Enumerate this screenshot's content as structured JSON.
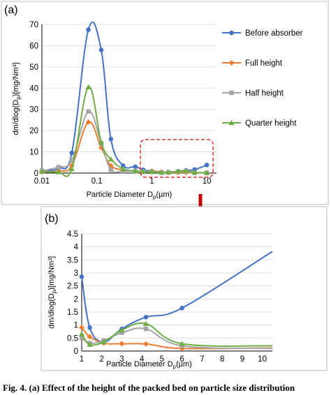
{
  "panel_a_label": "(a)",
  "panel_b_label": "(b)",
  "caption": "Fig. 4. (a) Effect of the height of the packed bed on particle size distribution",
  "colors": {
    "Before absorber": "#4472c4",
    "Full height": "#ed7d31",
    "Half height": "#a5a5a5",
    "Quarter height": "#70ad47",
    "highlight": "#e03030",
    "arrow": "#c00000",
    "grid": "#d9d9d9"
  },
  "chart_data": [
    {
      "id": "a",
      "type": "line",
      "x_scale": "log",
      "xlim": [
        0.01,
        15
      ],
      "ylim": [
        0,
        70
      ],
      "xticks": [
        0.01,
        0.1,
        1,
        10
      ],
      "xtick_labels": [
        "0.01",
        "0.1",
        "1",
        "10"
      ],
      "yticks": [
        0,
        10,
        20,
        30,
        40,
        50,
        60,
        70
      ],
      "ytick_labels": [
        "0",
        "10",
        "20",
        "30",
        "40",
        "50",
        "60",
        "70"
      ],
      "xlabel": "Particle Diameter D",
      "xlabel_sub": "p",
      "xlabel_tail": "(µm)",
      "ylabel": "dm/dlog(D",
      "ylabel_sub": "p",
      "ylabel_tail": ")[mg/Nm³]",
      "grid": "horizontal",
      "legend_position": "right",
      "series": [
        {
          "name": "Before absorber",
          "marker": "circle",
          "x": [
            0.01,
            0.02,
            0.035,
            0.07,
            0.12,
            0.18,
            0.3,
            0.5,
            0.7,
            1.0,
            1.5,
            2.0,
            3.0,
            4.2,
            6.0,
            10.0
          ],
          "y": [
            1.2,
            2.2,
            9.5,
            67.5,
            58,
            16,
            3.5,
            3.0,
            1.5,
            0.9,
            0.3,
            0.4,
            0.85,
            1.3,
            1.65,
            3.8
          ]
        },
        {
          "name": "Full height",
          "marker": "diamond",
          "x": [
            0.01,
            0.02,
            0.035,
            0.07,
            0.12,
            0.18,
            0.3,
            0.5,
            0.7,
            1.0,
            1.5,
            2.0,
            3.0,
            4.2,
            6.0,
            10.0
          ],
          "y": [
            0.5,
            1.0,
            3.5,
            24,
            12,
            3.5,
            1.5,
            0.8,
            0.6,
            0.9,
            0.55,
            0.3,
            0.28,
            0.27,
            0.1,
            0.12
          ]
        },
        {
          "name": "Half height",
          "marker": "square",
          "x": [
            0.01,
            0.02,
            0.035,
            0.07,
            0.12,
            0.18,
            0.3,
            0.5,
            0.7,
            1.0,
            1.5,
            2.0,
            3.0,
            4.2,
            6.0,
            10.0
          ],
          "y": [
            1.0,
            2.8,
            6.0,
            29,
            14,
            1.5,
            1.0,
            0.8,
            0.6,
            0.5,
            0.3,
            0.4,
            0.75,
            0.9,
            0.18,
            0.1
          ]
        },
        {
          "name": "Quarter height",
          "marker": "triangle",
          "x": [
            0.01,
            0.02,
            0.035,
            0.07,
            0.12,
            0.18,
            0.3,
            0.5,
            0.7,
            1.0,
            1.5,
            2.0,
            3.0,
            4.2,
            6.0,
            10.0
          ],
          "y": [
            0.8,
            0.5,
            2.0,
            40.5,
            14.5,
            6.5,
            2.0,
            1.0,
            0.7,
            0.65,
            0.22,
            0.35,
            0.8,
            1.05,
            0.28,
            0.2
          ]
        }
      ]
    },
    {
      "id": "b",
      "type": "line",
      "x_scale": "linear",
      "xlim": [
        1,
        10.5
      ],
      "ylim": [
        0,
        4.5
      ],
      "xticks": [
        1,
        2,
        3,
        4,
        5,
        6,
        7,
        8,
        9,
        10
      ],
      "xtick_labels": [
        "1",
        "2",
        "3",
        "4",
        "5",
        "6",
        "7",
        "8",
        "9",
        "10"
      ],
      "yticks": [
        0,
        0.5,
        1,
        1.5,
        2,
        2.5,
        3,
        3.5,
        4,
        4.5
      ],
      "ytick_labels": [
        "0",
        "0.5",
        "1",
        "1.5",
        "2",
        "2.5",
        "3",
        "3.5",
        "4",
        "4.5"
      ],
      "xlabel": "Particle Diameter D",
      "xlabel_sub": "p",
      "xlabel_tail": "(µm)",
      "ylabel": "dm/dlog(D",
      "ylabel_sub": "p",
      "ylabel_tail": ")[mg/Nm³]",
      "grid": "horizontal",
      "series": [
        {
          "name": "Before absorber",
          "marker": "circle",
          "x": [
            1.0,
            1.4,
            2.1,
            3.0,
            4.2,
            6.0,
            10.5
          ],
          "y": [
            2.85,
            0.9,
            0.35,
            0.85,
            1.3,
            1.65,
            3.82
          ]
        },
        {
          "name": "Full height",
          "marker": "diamond",
          "x": [
            1.0,
            1.4,
            2.1,
            3.0,
            4.2,
            6.0,
            10.5
          ],
          "y": [
            0.9,
            0.55,
            0.3,
            0.28,
            0.27,
            0.1,
            0.12
          ]
        },
        {
          "name": "Half height",
          "marker": "square",
          "x": [
            1.0,
            1.4,
            2.1,
            3.0,
            4.2,
            6.0,
            10.5
          ],
          "y": [
            0.5,
            0.3,
            0.4,
            0.7,
            0.85,
            0.2,
            0.1
          ]
        },
        {
          "name": "Quarter height",
          "marker": "triangle",
          "x": [
            1.0,
            1.4,
            2.1,
            3.0,
            4.2,
            6.0,
            10.5
          ],
          "y": [
            0.65,
            0.25,
            0.35,
            0.8,
            1.05,
            0.28,
            0.2
          ]
        }
      ]
    }
  ]
}
